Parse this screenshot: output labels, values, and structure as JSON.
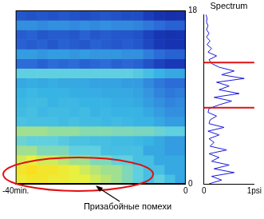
{
  "chart_data": [
    {
      "type": "heatmap",
      "xlim": [
        -40,
        0
      ],
      "xticks": [
        {
          "value": -40,
          "label": "-40min."
        },
        0
      ],
      "ylim": [
        0,
        18
      ],
      "yticks": [
        0,
        18
      ],
      "zlim": [
        0,
        1
      ],
      "cells": [
        [
          0.8,
          0.85,
          0.85,
          0.8,
          0.8,
          0.75,
          0.75,
          0.7,
          0.65,
          0.6,
          0.55,
          0.5,
          0.45,
          0.5,
          0.45,
          0.4
        ],
        [
          0.85,
          0.9,
          0.85,
          0.85,
          0.8,
          0.75,
          0.7,
          0.65,
          0.6,
          0.6,
          0.55,
          0.5,
          0.45,
          0.45,
          0.4,
          0.4
        ],
        [
          0.7,
          0.75,
          0.7,
          0.7,
          0.65,
          0.6,
          0.6,
          0.55,
          0.55,
          0.5,
          0.5,
          0.45,
          0.45,
          0.4,
          0.4,
          0.4
        ],
        [
          0.6,
          0.6,
          0.55,
          0.55,
          0.55,
          0.5,
          0.5,
          0.5,
          0.45,
          0.45,
          0.45,
          0.45,
          0.4,
          0.4,
          0.38,
          0.38
        ],
        [
          0.52,
          0.5,
          0.5,
          0.5,
          0.48,
          0.46,
          0.46,
          0.45,
          0.45,
          0.44,
          0.44,
          0.43,
          0.42,
          0.4,
          0.38,
          0.38
        ],
        [
          0.6,
          0.6,
          0.6,
          0.58,
          0.58,
          0.58,
          0.56,
          0.56,
          0.56,
          0.55,
          0.55,
          0.54,
          0.54,
          0.52,
          0.5,
          0.5
        ],
        [
          0.46,
          0.45,
          0.45,
          0.45,
          0.44,
          0.45,
          0.44,
          0.44,
          0.43,
          0.44,
          0.43,
          0.42,
          0.42,
          0.4,
          0.38,
          0.38
        ],
        [
          0.44,
          0.45,
          0.43,
          0.44,
          0.44,
          0.43,
          0.44,
          0.42,
          0.43,
          0.42,
          0.42,
          0.42,
          0.4,
          0.38,
          0.36,
          0.36
        ],
        [
          0.43,
          0.44,
          0.44,
          0.42,
          0.43,
          0.43,
          0.42,
          0.42,
          0.42,
          0.41,
          0.41,
          0.4,
          0.38,
          0.36,
          0.34,
          0.35
        ],
        [
          0.42,
          0.43,
          0.42,
          0.42,
          0.42,
          0.41,
          0.41,
          0.41,
          0.4,
          0.4,
          0.4,
          0.39,
          0.37,
          0.34,
          0.32,
          0.33
        ],
        [
          0.4,
          0.41,
          0.4,
          0.41,
          0.4,
          0.4,
          0.4,
          0.39,
          0.39,
          0.39,
          0.38,
          0.38,
          0.35,
          0.32,
          0.3,
          0.3
        ],
        [
          0.5,
          0.5,
          0.5,
          0.5,
          0.5,
          0.5,
          0.5,
          0.5,
          0.5,
          0.5,
          0.5,
          0.48,
          0.45,
          0.42,
          0.4,
          0.4
        ],
        [
          0.3,
          0.3,
          0.28,
          0.3,
          0.29,
          0.3,
          0.28,
          0.29,
          0.3,
          0.28,
          0.29,
          0.28,
          0.25,
          0.22,
          0.2,
          0.2
        ],
        [
          0.38,
          0.38,
          0.37,
          0.38,
          0.38,
          0.37,
          0.38,
          0.37,
          0.37,
          0.37,
          0.36,
          0.36,
          0.33,
          0.3,
          0.28,
          0.28
        ],
        [
          0.28,
          0.27,
          0.28,
          0.26,
          0.28,
          0.27,
          0.26,
          0.28,
          0.27,
          0.26,
          0.27,
          0.26,
          0.23,
          0.2,
          0.18,
          0.18
        ],
        [
          0.27,
          0.28,
          0.26,
          0.27,
          0.27,
          0.26,
          0.28,
          0.26,
          0.27,
          0.26,
          0.26,
          0.25,
          0.22,
          0.19,
          0.17,
          0.18
        ],
        [
          0.36,
          0.36,
          0.35,
          0.36,
          0.36,
          0.35,
          0.36,
          0.35,
          0.36,
          0.35,
          0.35,
          0.34,
          0.32,
          0.3,
          0.28,
          0.28
        ],
        [
          0.26,
          0.25,
          0.26,
          0.25,
          0.26,
          0.25,
          0.24,
          0.25,
          0.26,
          0.25,
          0.24,
          0.24,
          0.21,
          0.18,
          0.16,
          0.17
        ]
      ],
      "annotations": [
        "Призабойные помехи"
      ]
    },
    {
      "type": "line",
      "title": "Spectrum",
      "y": [
        0,
        0.4,
        0.8,
        1.2,
        1.6,
        2,
        2.4,
        2.8,
        3.2,
        3.6,
        4,
        4.4,
        4.8,
        5.2,
        5.6,
        6,
        6.4,
        6.8,
        7.2,
        7.6,
        8,
        8.4,
        8.8,
        9.2,
        9.6,
        10,
        10.4,
        10.8,
        11.2,
        11.6,
        12,
        12.4,
        12.8,
        13.2,
        13.6,
        14,
        14.4,
        14.8,
        15.2,
        15.6,
        16,
        16.4,
        16.8,
        17.2,
        17.6,
        18
      ],
      "values": [
        0.1,
        0.35,
        0.15,
        0.6,
        0.2,
        0.5,
        0.15,
        0.3,
        0.1,
        0.45,
        0.12,
        0.2,
        0.1,
        0.3,
        0.08,
        0.4,
        0.1,
        0.12,
        0.25,
        0.08,
        0.1,
        0.3,
        0.55,
        0.2,
        0.7,
        0.3,
        0.5,
        0.25,
        0.8,
        0.35,
        0.6,
        0.3,
        0.15,
        0.1,
        0.25,
        0.08,
        0.15,
        0.06,
        0.12,
        0.05,
        0.1,
        0.05,
        0.08,
        0.05,
        0.06,
        0.04
      ],
      "color": "#1a1adc",
      "xlim": [
        0,
        1
      ],
      "xticks": [
        0,
        {
          "value": 1,
          "label": "1psi"
        }
      ],
      "ylim": [
        0,
        18
      ],
      "tick_labels": "x",
      "hlines": [
        {
          "value": 8.1,
          "color": "#e01010"
        },
        {
          "value": 12.9,
          "color": "#e01010"
        }
      ]
    }
  ]
}
